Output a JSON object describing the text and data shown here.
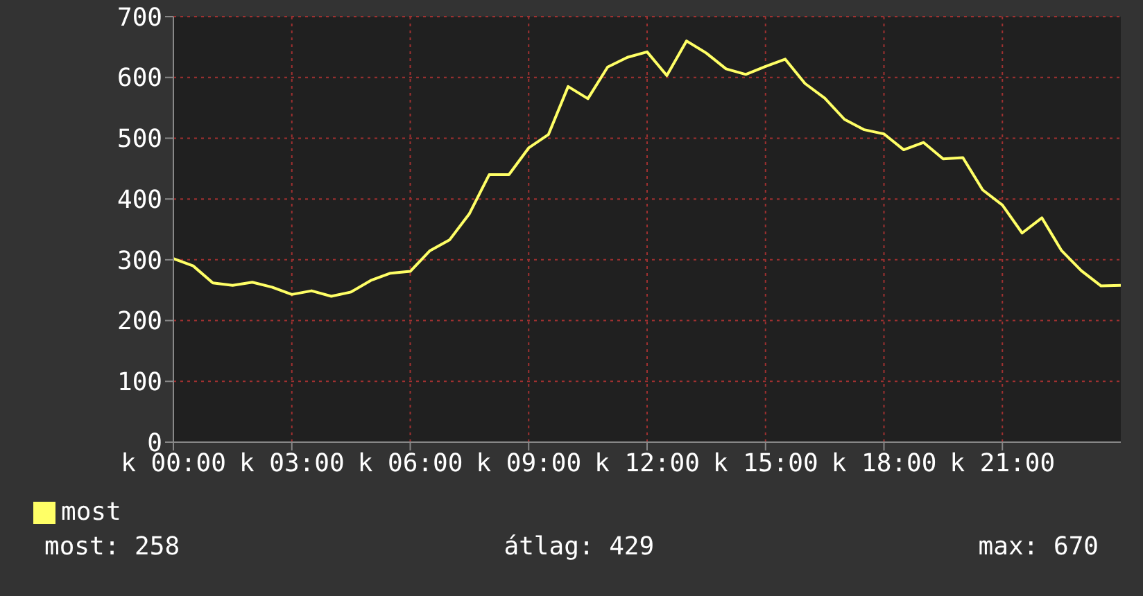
{
  "chart_data": {
    "type": "line",
    "categories": [
      "k 00:00",
      null,
      null,
      null,
      null,
      null,
      "k 03:00",
      null,
      null,
      null,
      null,
      null,
      "k 06:00",
      null,
      null,
      null,
      null,
      null,
      "k 09:00",
      null,
      null,
      null,
      null,
      null,
      "k 12:00",
      null,
      null,
      null,
      null,
      null,
      "k 15:00",
      null,
      null,
      null,
      null,
      null,
      "k 18:00",
      null,
      null,
      null,
      null,
      null,
      "k 21:00",
      null,
      null,
      null,
      null,
      null,
      null
    ],
    "series": [
      {
        "name": "most",
        "color": "#ffff66",
        "values": [
          302,
          290,
          262,
          258,
          263,
          255,
          243,
          249,
          240,
          247,
          266,
          278,
          281,
          315,
          333,
          376,
          440,
          440,
          484,
          506,
          585,
          565,
          617,
          633,
          642,
          603,
          660,
          640,
          614,
          605,
          618,
          630,
          590,
          566,
          531,
          514,
          507,
          481,
          493,
          466,
          468,
          415,
          390,
          344,
          369,
          315,
          282,
          257,
          258
        ]
      }
    ],
    "ylim": [
      0,
      700
    ],
    "yticks": [
      0,
      100,
      200,
      300,
      400,
      500,
      600,
      700
    ],
    "grid": true,
    "legend": "bottom",
    "marker": "none",
    "line_style": "solid",
    "annotations": [
      "most: 258",
      "átlag: 429",
      "max: 670"
    ]
  }
}
